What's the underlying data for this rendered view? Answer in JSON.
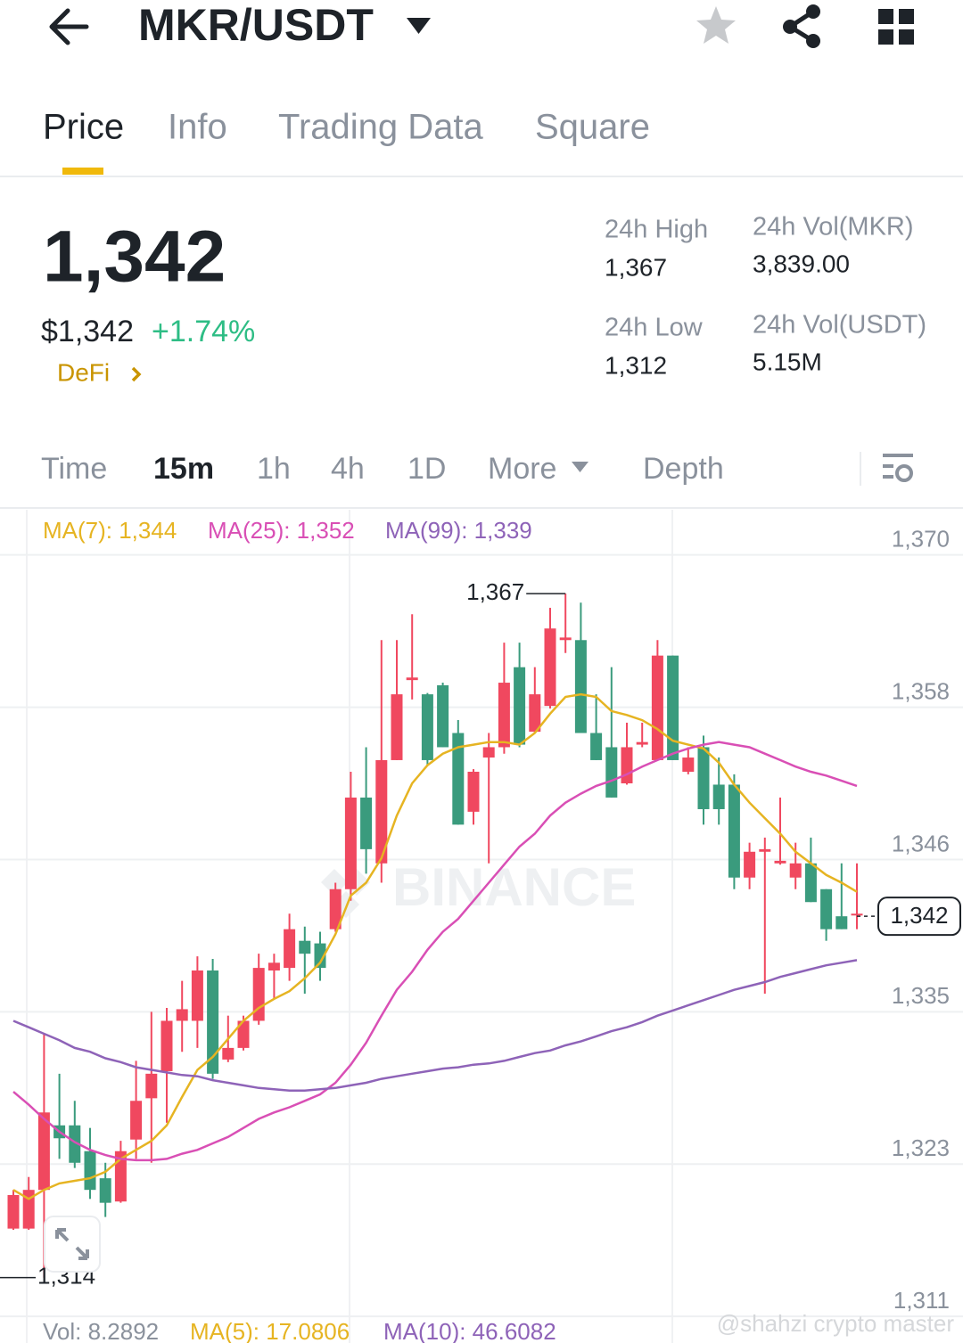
{
  "header": {
    "title": "MKR/USDT"
  },
  "tabs": [
    "Price",
    "Info",
    "Trading Data",
    "Square"
  ],
  "ticker": {
    "price": "1,342",
    "price_usd": "$1,342",
    "change": "+1.74%",
    "tag": "DeFi",
    "stats": [
      {
        "label": "24h High",
        "value": "1,367"
      },
      {
        "label": "24h Vol(MKR)",
        "value": "3,839.00"
      },
      {
        "label": "24h Low",
        "value": "1,312"
      },
      {
        "label": "24h Vol(USDT)",
        "value": "5.15M"
      }
    ]
  },
  "intervals": [
    "Time",
    "15m",
    "1h",
    "4h",
    "1D",
    "More",
    "Depth"
  ],
  "chart_data": {
    "type": "candlestick",
    "up_color": "#f0485f",
    "down_color": "#3a9b7d",
    "open": [
      1317.8,
      1317.8,
      1320.8,
      1325.8,
      1325.8,
      1323.8,
      1321.7,
      1319.9,
      1324.7,
      1327.9,
      1330.0,
      1333.9,
      1333.9,
      1337.8,
      1330.9,
      1331.8,
      1333.9,
      1337.8,
      1338.0,
      1340.1,
      1339.9,
      1341.0,
      1344.1,
      1351.2,
      1346.1,
      1354.1,
      1360.3,
      1359.2,
      1359.9,
      1356.2,
      1350.1,
      1354.3,
      1355.1,
      1361.3,
      1356.3,
      1358.3,
      1363.4,
      1363.4,
      1356.2,
      1355.1,
      1352.3,
      1355.3,
      1354.1,
      1362.2,
      1353.2,
      1355.1,
      1352.2,
      1352.2,
      1345.0,
      1347.0,
      1346.1,
      1345.0,
      1346.1,
      1344.1,
      1342.0,
      1342.1
    ],
    "high": [
      1320.8,
      1321.8,
      1332.9,
      1329.8,
      1327.7,
      1325.6,
      1322.9,
      1324.6,
      1330.8,
      1334.6,
      1334.9,
      1337.0,
      1338.9,
      1338.7,
      1334.3,
      1334.3,
      1339.1,
      1339.1,
      1342.2,
      1341.2,
      1340.8,
      1344.6,
      1353.2,
      1355.1,
      1363.4,
      1363.4,
      1365.4,
      1359.3,
      1360.1,
      1357.2,
      1353.4,
      1356.2,
      1363.2,
      1363.2,
      1361.3,
      1365.9,
      1367,
      1366.3,
      1359.2,
      1361.3,
      1357.0,
      1357.0,
      1363.4,
      1362.2,
      1355.1,
      1356.0,
      1354.3,
      1353.0,
      1347.7,
      1348.1,
      1351.2,
      1347.7,
      1348.1,
      1344.1,
      1346.1,
      1346.1
    ],
    "low": [
      1317.7,
      1317.7,
      1314,
      1323.2,
      1322.5,
      1320.1,
      1318.7,
      1319.8,
      1323.2,
      1322.9,
      1326.0,
      1331.5,
      1331.8,
      1329.4,
      1330.7,
      1331.6,
      1333.6,
      1335.6,
      1337.0,
      1336.0,
      1337.0,
      1340.8,
      1343.2,
      1345.3,
      1344.6,
      1354.1,
      1358.8,
      1353.7,
      1355.1,
      1349.1,
      1349.1,
      1346.1,
      1354.6,
      1355.1,
      1356.2,
      1358.1,
      1362.4,
      1356.2,
      1354.1,
      1351.2,
      1352.2,
      1355.1,
      1354.1,
      1354.1,
      1353.0,
      1349.1,
      1349.1,
      1344.1,
      1344.1,
      1336.0,
      1346.0,
      1344.1,
      1343.1,
      1340.1,
      1341.0,
      1341.0
    ],
    "close": [
      1320.4,
      1320.8,
      1326.8,
      1324.8,
      1322.9,
      1320.8,
      1319.8,
      1323.8,
      1327.7,
      1329.8,
      1333.9,
      1334.8,
      1337.8,
      1329.8,
      1331.8,
      1333.9,
      1338.0,
      1338.4,
      1341.0,
      1339.1,
      1338.0,
      1344.1,
      1351.2,
      1347.2,
      1354.1,
      1359.2,
      1360.5,
      1354.1,
      1355.1,
      1349.1,
      1353.2,
      1355.1,
      1360.1,
      1355.3,
      1359.2,
      1364.3,
      1363.6,
      1356.2,
      1354.1,
      1351.2,
      1355.1,
      1355.5,
      1362.2,
      1354.1,
      1354.3,
      1350.3,
      1350.3,
      1345.0,
      1347.0,
      1347.2,
      1346.3,
      1346.1,
      1343.1,
      1341.0,
      1341.0,
      1342.2
    ],
    "series": [
      {
        "name": "MA(7): 1,344",
        "color": "#e6b422",
        "values": [
          1320.8,
          1320.1,
          1320.8,
          1321.3,
          1321.5,
          1321.7,
          1322.2,
          1323.2,
          1323.9,
          1324.6,
          1325.8,
          1328.0,
          1330.1,
          1331.1,
          1332.5,
          1333.9,
          1334.9,
          1335.6,
          1336.2,
          1337.2,
          1338.4,
          1340.6,
          1343.6,
          1344.6,
          1346.5,
          1349.8,
          1352.3,
          1353.7,
          1354.6,
          1355.1,
          1355.3,
          1355.5,
          1355.5,
          1355.3,
          1356.2,
          1357.7,
          1359.0,
          1359.2,
          1359.0,
          1357.9,
          1357.6,
          1357.2,
          1356.5,
          1355.6,
          1355.3,
          1355.0,
          1353.9,
          1352.2,
          1350.8,
          1349.6,
          1348.4,
          1347.0,
          1346.1,
          1345.2,
          1344.6,
          1343.9
        ]
      },
      {
        "name": "MA(25): 1,352",
        "color": "#d94fb5",
        "values": [
          1328.4,
          1327.4,
          1326.3,
          1325.3,
          1324.5,
          1323.9,
          1323.5,
          1323.2,
          1323.1,
          1323.1,
          1323.2,
          1323.6,
          1323.9,
          1324.4,
          1324.9,
          1325.6,
          1326.3,
          1326.8,
          1327.2,
          1327.7,
          1328.2,
          1329.1,
          1330.5,
          1332.2,
          1334.3,
          1336.3,
          1337.7,
          1339.4,
          1340.8,
          1341.8,
          1343.2,
          1344.6,
          1346.0,
          1347.4,
          1348.4,
          1349.8,
          1350.8,
          1351.5,
          1352.1,
          1352.5,
          1353.0,
          1353.6,
          1354.1,
          1354.6,
          1355.0,
          1355.3,
          1355.5,
          1355.3,
          1355.1,
          1354.6,
          1354.1,
          1353.6,
          1353.2,
          1352.9,
          1352.5,
          1352.1
        ]
      },
      {
        "name": "MA(99): 1,339",
        "color": "#8e63b8",
        "values": [
          1333.9,
          1333.4,
          1332.9,
          1332.4,
          1331.8,
          1331.5,
          1331.0,
          1330.7,
          1330.3,
          1330.1,
          1329.9,
          1329.7,
          1329.6,
          1329.3,
          1329.1,
          1328.9,
          1328.7,
          1328.6,
          1328.5,
          1328.5,
          1328.6,
          1328.7,
          1328.9,
          1329.1,
          1329.4,
          1329.6,
          1329.8,
          1330.0,
          1330.2,
          1330.3,
          1330.5,
          1330.6,
          1330.8,
          1331.1,
          1331.4,
          1331.6,
          1332.0,
          1332.3,
          1332.7,
          1333.1,
          1333.4,
          1333.8,
          1334.3,
          1334.7,
          1335.1,
          1335.5,
          1335.9,
          1336.3,
          1336.6,
          1336.9,
          1337.3,
          1337.6,
          1337.9,
          1338.2,
          1338.4,
          1338.6
        ]
      }
    ],
    "ylim": [
      1310.8,
      1373.5
    ],
    "yticks": [
      {
        "value": 1370,
        "label": "1,370"
      },
      {
        "value": 1358.2,
        "label": "1,358"
      },
      {
        "value": 1346.4,
        "label": "1,346"
      },
      {
        "value": 1334.6,
        "label": "1,335"
      },
      {
        "value": 1322.8,
        "label": "1,323"
      },
      {
        "value": 1311,
        "label": "1,311"
      }
    ],
    "grid": true,
    "annotations": [
      {
        "value": 1367,
        "label": "1,367"
      },
      {
        "value": 1314,
        "label": "1,314"
      }
    ],
    "last_price": {
      "value": 1342,
      "label": "1,342"
    },
    "volume_legend": [
      "Vol: 8.2892",
      "MA(5): 17.0806",
      "MA(10): 46.6082"
    ],
    "watermark": "BINANCE"
  },
  "footer_watermark": "@shahzi crypto master"
}
